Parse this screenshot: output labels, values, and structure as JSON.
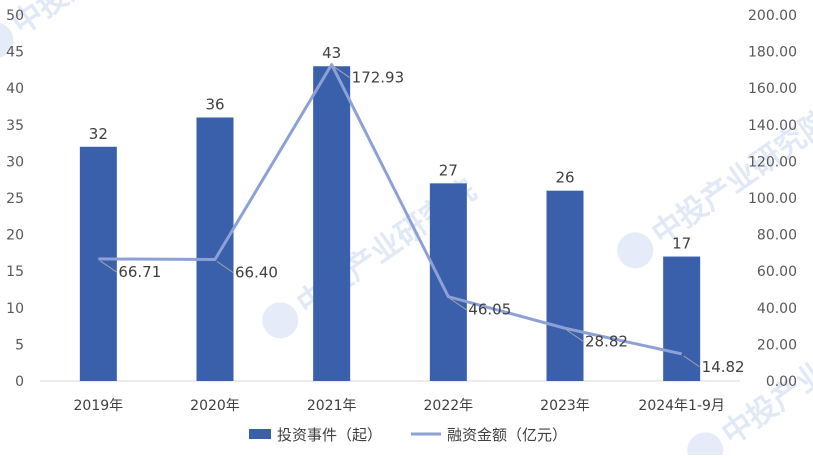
{
  "chart_data": {
    "type": "bar+line",
    "categories": [
      "2019年",
      "2020年",
      "2021年",
      "2022年",
      "2023年",
      "2024年1-9月"
    ],
    "series": [
      {
        "name": "投资事件（起）",
        "type": "bar",
        "axis": "left",
        "values": [
          32,
          36,
          43,
          27,
          26,
          17
        ],
        "labels": [
          "32",
          "36",
          "43",
          "27",
          "26",
          "17"
        ],
        "color": "#3a5fab"
      },
      {
        "name": "融资金额（亿元）",
        "type": "line",
        "axis": "right",
        "values": [
          66.71,
          66.4,
          172.93,
          46.05,
          28.82,
          14.82
        ],
        "labels": [
          "66.71",
          "66.40",
          "172.93",
          "46.05",
          "28.82",
          "14.82"
        ],
        "color": "#8ea1d6"
      }
    ],
    "y_left": {
      "min": 0,
      "max": 50,
      "ticks": [
        "0",
        "5",
        "10",
        "15",
        "20",
        "25",
        "30",
        "35",
        "40",
        "45",
        "50"
      ]
    },
    "y_right": {
      "min": 0,
      "max": 200,
      "ticks": [
        "0.00",
        "20.00",
        "40.00",
        "60.00",
        "80.00",
        "100.00",
        "120.00",
        "140.00",
        "160.00",
        "180.00",
        "200.00"
      ]
    },
    "grid": false,
    "legend_position": "bottom"
  },
  "watermark": {
    "text": "中投产业研究院"
  }
}
